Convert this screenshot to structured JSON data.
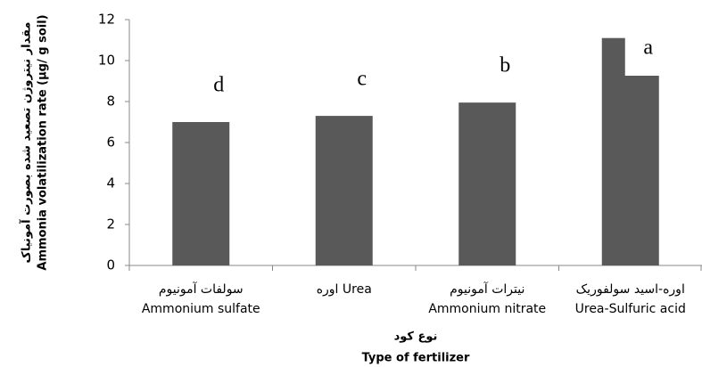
{
  "chart_data": {
    "type": "bar",
    "y_label": [
      "مقدار نیتروژن تصعید شده بصورت آمونیاک",
      "Ammonia volatilization rate (μg/ g soil)"
    ],
    "x_label": [
      "نوع کود",
      "Type of fertilizer"
    ],
    "categories": [
      [
        "سولفات آمونیوم",
        "Ammonium sulfate"
      ],
      [
        "اوره Urea"
      ],
      [
        "نیترات آمونیوم",
        "Ammonium nitrate"
      ],
      [
        "اوره-اسید سولفوریک",
        "Urea-Sulfuric acid"
      ]
    ],
    "values": [
      7.0,
      7.3,
      7.95,
      11.1
    ],
    "annotations": [
      "d",
      "c",
      "b",
      "a"
    ],
    "color": "#595959",
    "ylim": [
      0,
      12
    ],
    "yticks": [
      0,
      2,
      4,
      6,
      8,
      10,
      12
    ],
    "grid": false
  }
}
